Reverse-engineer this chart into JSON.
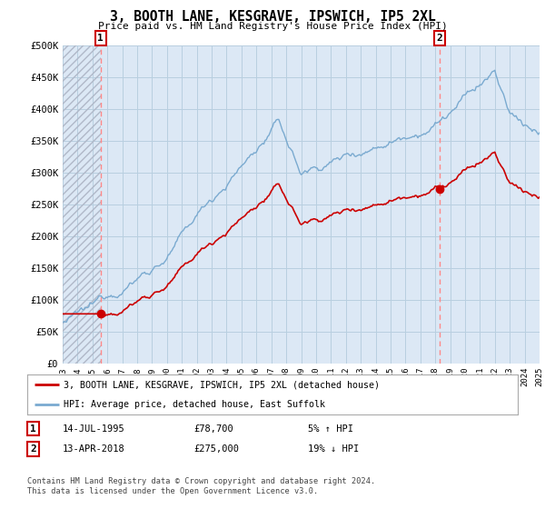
{
  "title": "3, BOOTH LANE, KESGRAVE, IPSWICH, IP5 2XL",
  "subtitle": "Price paid vs. HM Land Registry's House Price Index (HPI)",
  "ylabel_ticks": [
    "£0",
    "£50K",
    "£100K",
    "£150K",
    "£200K",
    "£250K",
    "£300K",
    "£350K",
    "£400K",
    "£450K",
    "£500K"
  ],
  "ylim": [
    0,
    500000
  ],
  "yticks": [
    0,
    50000,
    100000,
    150000,
    200000,
    250000,
    300000,
    350000,
    400000,
    450000,
    500000
  ],
  "hpi_color": "#7aaad0",
  "price_color": "#cc0000",
  "marker_color": "#cc0000",
  "vline_color": "#ff8888",
  "sale1_t": 1995.54,
  "sale1_p": 78700,
  "sale2_t": 2018.28,
  "sale2_p": 275000,
  "legend_entry1": "3, BOOTH LANE, KESGRAVE, IPSWICH, IP5 2XL (detached house)",
  "legend_entry2": "HPI: Average price, detached house, East Suffolk",
  "footnote": "Contains HM Land Registry data © Crown copyright and database right 2024.\nThis data is licensed under the Open Government Licence v3.0.",
  "plot_bg_color": "#dce8f5",
  "fig_bg_color": "#ffffff",
  "grid_color": "#b8cfe0",
  "hatch_color": "#b0b8c8"
}
